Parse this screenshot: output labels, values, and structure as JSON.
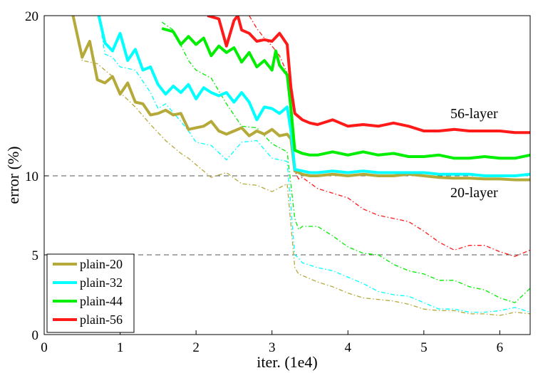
{
  "chart_data": {
    "type": "line",
    "xlabel": "iter. (1e4)",
    "ylabel": "error (%)",
    "xlim": [
      0,
      6.4
    ],
    "ylim": [
      0,
      20
    ],
    "x_ticks": [
      "0",
      "1",
      "2",
      "3",
      "4",
      "5",
      "6"
    ],
    "y_ticks": [
      {
        "value": 0,
        "label": "0"
      },
      {
        "value": 5,
        "label": "5"
      },
      {
        "value": 10,
        "label": "10"
      },
      {
        "value": 20,
        "label": "20"
      }
    ],
    "grid": "horizontal-dashed",
    "legend_position": "bottom-left",
    "annotations": [
      {
        "text": "56-layer",
        "x": 5.7,
        "y": 13.6
      },
      {
        "text": "20-layer",
        "x": 5.7,
        "y": 8.7
      }
    ],
    "series": [
      {
        "name": "plain-20",
        "color": "#b5a93a",
        "x": [
          0.38,
          0.5,
          0.6,
          0.7,
          0.8,
          0.9,
          1.0,
          1.1,
          1.2,
          1.3,
          1.4,
          1.5,
          1.6,
          1.7,
          1.8,
          1.9,
          2.0,
          2.1,
          2.2,
          2.3,
          2.4,
          2.5,
          2.6,
          2.7,
          2.8,
          2.9,
          3.0,
          3.1,
          3.2,
          3.25,
          3.3,
          3.4,
          3.5,
          3.6,
          3.8,
          4.0,
          4.2,
          4.4,
          4.6,
          4.8,
          5.0,
          5.2,
          5.4,
          5.6,
          5.8,
          6.0,
          6.2,
          6.4
        ],
        "values": [
          20,
          17.4,
          18.4,
          16.0,
          15.8,
          16.2,
          15.1,
          15.8,
          14.6,
          14.5,
          13.8,
          13.9,
          14.1,
          13.8,
          13.9,
          12.9,
          13.0,
          13.1,
          13.4,
          12.8,
          12.6,
          12.8,
          13.0,
          12.5,
          12.8,
          12.6,
          12.9,
          12.5,
          12.6,
          12.3,
          10.3,
          10.1,
          10.0,
          10.0,
          10.1,
          10.0,
          10.1,
          10.0,
          10.0,
          10.1,
          10.0,
          9.9,
          9.85,
          9.85,
          9.8,
          9.8,
          9.75,
          9.75
        ],
        "test_x": [
          0.38,
          0.5,
          0.7,
          0.9,
          1.0,
          1.2,
          1.4,
          1.6,
          1.8,
          1.9,
          2.0,
          2.2,
          2.4,
          2.6,
          2.8,
          3.0,
          3.2,
          3.3,
          3.35,
          3.4,
          3.6,
          3.8,
          4.0,
          4.2,
          4.4,
          4.6,
          4.8,
          5.0,
          5.2,
          5.4,
          5.6,
          5.8,
          6.0,
          6.2,
          6.4
        ],
        "test_values": [
          20,
          17.2,
          17.0,
          16.2,
          15.2,
          14.3,
          13.2,
          12.2,
          11.4,
          11.1,
          10.7,
          9.9,
          10.2,
          9.5,
          9.4,
          9.0,
          9.5,
          4.2,
          3.8,
          3.7,
          3.3,
          3.0,
          2.6,
          2.3,
          2.2,
          2.1,
          1.9,
          1.6,
          1.5,
          1.5,
          1.3,
          1.3,
          1.2,
          1.4,
          1.3
        ]
      },
      {
        "name": "plain-32",
        "color": "#00ffff",
        "x": [
          0.72,
          0.8,
          0.9,
          1.0,
          1.1,
          1.2,
          1.3,
          1.4,
          1.5,
          1.6,
          1.7,
          1.8,
          1.9,
          2.0,
          2.1,
          2.2,
          2.3,
          2.4,
          2.5,
          2.6,
          2.7,
          2.8,
          2.9,
          3.0,
          3.1,
          3.2,
          3.25,
          3.3,
          3.4,
          3.5,
          3.6,
          3.8,
          4.0,
          4.2,
          4.4,
          4.6,
          4.8,
          5.0,
          5.2,
          5.4,
          5.6,
          5.8,
          6.0,
          6.2,
          6.4
        ],
        "values": [
          20,
          18.3,
          17.8,
          18.9,
          17.2,
          17.9,
          16.6,
          16.8,
          15.7,
          15.1,
          15.6,
          15.2,
          15.7,
          14.8,
          15.5,
          15.2,
          15.0,
          15.2,
          14.6,
          15.2,
          14.6,
          13.5,
          14.3,
          14.2,
          13.9,
          14.3,
          12.8,
          10.4,
          10.3,
          10.2,
          10.2,
          10.3,
          10.2,
          10.3,
          10.2,
          10.2,
          10.2,
          10.2,
          10.1,
          10.1,
          10.1,
          10.0,
          10.0,
          10.0,
          10.1
        ],
        "test_x": [
          0.72,
          0.8,
          0.9,
          1.0,
          1.2,
          1.4,
          1.5,
          1.6,
          1.8,
          1.9,
          2.0,
          2.2,
          2.4,
          2.6,
          2.8,
          3.0,
          3.2,
          3.3,
          3.35,
          3.4,
          3.6,
          3.8,
          4.0,
          4.2,
          4.4,
          4.6,
          4.8,
          5.0,
          5.2,
          5.4,
          5.6,
          5.8,
          6.0,
          6.2,
          6.4
        ],
        "test_values": [
          20,
          17.6,
          17.4,
          16.8,
          16.6,
          15.2,
          14.2,
          14.5,
          13.4,
          12.8,
          12.1,
          11.9,
          11.0,
          12.1,
          12.2,
          11.1,
          10.9,
          5.0,
          4.8,
          4.5,
          4.2,
          4.0,
          3.6,
          3.2,
          2.7,
          2.5,
          2.4,
          2.0,
          1.6,
          1.6,
          1.4,
          1.4,
          1.5,
          1.7,
          1.4
        ]
      },
      {
        "name": "plain-44",
        "color": "#00ee00",
        "x": [
          1.55,
          1.7,
          1.8,
          1.9,
          2.0,
          2.1,
          2.2,
          2.3,
          2.4,
          2.5,
          2.6,
          2.7,
          2.8,
          2.9,
          3.0,
          3.05,
          3.1,
          3.2,
          3.25,
          3.3,
          3.4,
          3.5,
          3.6,
          3.8,
          4.0,
          4.2,
          4.4,
          4.6,
          4.8,
          5.0,
          5.2,
          5.4,
          5.6,
          5.8,
          6.0,
          6.2,
          6.4
        ],
        "values": [
          19.2,
          19.0,
          18.2,
          18.7,
          18.2,
          18.6,
          17.5,
          18.1,
          17.7,
          18.0,
          17.1,
          17.7,
          16.8,
          17.2,
          16.6,
          17.8,
          16.9,
          16.3,
          14.2,
          11.6,
          11.4,
          11.3,
          11.3,
          11.5,
          11.3,
          11.5,
          11.3,
          11.4,
          11.2,
          11.2,
          11.3,
          11.1,
          11.1,
          11.2,
          11.1,
          11.1,
          11.3
        ],
        "test_x": [
          1.55,
          1.7,
          1.9,
          2.0,
          2.2,
          2.4,
          2.6,
          2.8,
          3.0,
          3.2,
          3.3,
          3.35,
          3.4,
          3.6,
          3.8,
          4.0,
          4.2,
          4.4,
          4.6,
          4.8,
          5.0,
          5.2,
          5.4,
          5.6,
          5.8,
          6.0,
          6.2,
          6.4
        ],
        "test_values": [
          19.6,
          19.1,
          17.2,
          16.6,
          16.1,
          14.5,
          13.1,
          13.0,
          12.0,
          11.5,
          7.3,
          6.6,
          6.8,
          6.8,
          6.2,
          5.5,
          5.1,
          5.0,
          4.4,
          4.0,
          3.8,
          3.4,
          3.4,
          3.0,
          2.8,
          2.3,
          2.0,
          2.9
        ]
      },
      {
        "name": "plain-56",
        "color": "#ff1a1a",
        "x": [
          2.15,
          2.3,
          2.4,
          2.5,
          2.55,
          2.6,
          2.7,
          2.8,
          2.9,
          3.0,
          3.1,
          3.2,
          3.25,
          3.3,
          3.4,
          3.5,
          3.6,
          3.8,
          4.0,
          4.2,
          4.4,
          4.6,
          4.8,
          5.0,
          5.2,
          5.4,
          5.6,
          5.8,
          6.0,
          6.2,
          6.4
        ],
        "values": [
          20,
          19.8,
          18.1,
          19.7,
          20.0,
          19.1,
          18.9,
          18.4,
          18.5,
          18.4,
          18.9,
          18.2,
          15.5,
          13.9,
          13.5,
          13.3,
          13.2,
          13.5,
          13.1,
          13.2,
          13.1,
          13.3,
          13.1,
          12.8,
          12.8,
          12.9,
          12.8,
          12.8,
          12.8,
          12.7,
          12.7
        ],
        "test_x": [
          2.7,
          2.8,
          2.9,
          3.0,
          3.1,
          3.2,
          3.3,
          3.35,
          3.4,
          3.6,
          3.8,
          4.0,
          4.2,
          4.4,
          4.6,
          4.8,
          5.0,
          5.2,
          5.4,
          5.6,
          5.8,
          6.0,
          6.2,
          6.4
        ],
        "test_values": [
          20,
          19.2,
          18.6,
          18.1,
          17.5,
          16.4,
          10.3,
          9.8,
          9.9,
          9.2,
          8.9,
          8.6,
          7.9,
          7.5,
          7.3,
          7.1,
          6.5,
          5.8,
          5.3,
          5.6,
          5.6,
          5.2,
          4.9,
          5.3
        ]
      }
    ]
  }
}
